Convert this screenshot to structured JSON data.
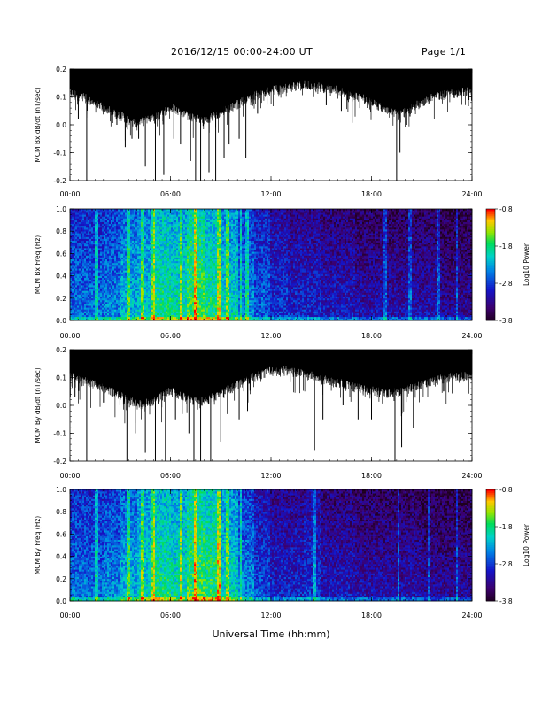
{
  "header": {
    "title": "2016/12/15  00:00-24:00 UT",
    "page": "Page 1/1"
  },
  "footer": {
    "xlabel": "Universal Time (hh:mm)"
  },
  "colors": {
    "trace": "#000000",
    "background": "#ffffff"
  },
  "chart_data": [
    {
      "type": "line",
      "ylabel": "MCM Bx dB/dt (nT/sec)",
      "xlabel": "",
      "x_tick_labels": [
        "00:00",
        "06:00",
        "12:00",
        "18:00",
        "24:00"
      ],
      "xlim": [
        0,
        24
      ],
      "ylim": [
        -0.2,
        0.2
      ],
      "y_tick_labels": [
        "0.2",
        "0.1",
        "0.0",
        "-0.1",
        "-0.2"
      ],
      "y_ticks": [
        0.2,
        0.1,
        0.0,
        -0.1,
        -0.2
      ],
      "envelope_x": [
        0,
        1,
        2,
        3,
        4,
        5,
        6,
        7,
        8,
        9,
        10,
        11,
        12,
        13,
        14,
        15,
        16,
        17,
        18,
        19,
        20,
        21,
        22,
        23,
        24
      ],
      "envelope_upper": [
        0.2,
        0.2,
        0.2,
        0.2,
        0.2,
        0.2,
        0.2,
        0.2,
        0.2,
        0.2,
        0.2,
        0.2,
        0.2,
        0.2,
        0.2,
        0.2,
        0.2,
        0.2,
        0.2,
        0.2,
        0.2,
        0.2,
        0.2,
        0.2,
        0.2
      ],
      "envelope_lower": [
        0.13,
        0.11,
        0.08,
        0.05,
        0.02,
        0.04,
        0.08,
        0.05,
        0.03,
        0.06,
        0.09,
        0.12,
        0.14,
        0.15,
        0.16,
        0.15,
        0.14,
        0.12,
        0.1,
        0.06,
        0.06,
        0.1,
        0.12,
        0.13,
        0.14
      ],
      "spikes": [
        {
          "x": 0.5,
          "y": 0.02
        },
        {
          "x": 1.0,
          "y": -0.2
        },
        {
          "x": 2.8,
          "y": 0.0
        },
        {
          "x": 3.3,
          "y": -0.08
        },
        {
          "x": 3.7,
          "y": -0.05
        },
        {
          "x": 4.1,
          "y": -0.05
        },
        {
          "x": 4.5,
          "y": -0.15
        },
        {
          "x": 5.1,
          "y": -0.2
        },
        {
          "x": 5.6,
          "y": -0.18
        },
        {
          "x": 6.2,
          "y": -0.05
        },
        {
          "x": 6.6,
          "y": -0.07
        },
        {
          "x": 7.2,
          "y": -0.13
        },
        {
          "x": 7.5,
          "y": -0.2
        },
        {
          "x": 7.8,
          "y": -0.2
        },
        {
          "x": 8.3,
          "y": -0.17
        },
        {
          "x": 8.7,
          "y": -0.2
        },
        {
          "x": 9.2,
          "y": -0.12
        },
        {
          "x": 9.5,
          "y": -0.07
        },
        {
          "x": 10.1,
          "y": -0.05
        },
        {
          "x": 10.5,
          "y": -0.12
        },
        {
          "x": 11.2,
          "y": 0.04
        },
        {
          "x": 15.3,
          "y": 0.07
        },
        {
          "x": 16.2,
          "y": 0.05
        },
        {
          "x": 17.3,
          "y": 0.06
        },
        {
          "x": 19.5,
          "y": -0.2
        },
        {
          "x": 19.7,
          "y": -0.1
        },
        {
          "x": 20.1,
          "y": 0.0
        },
        {
          "x": 20.3,
          "y": 0.03
        }
      ]
    },
    {
      "type": "heatmap",
      "ylabel": "MCM Bx Freq (Hz)",
      "x_tick_labels": [
        "00:00",
        "06:00",
        "12:00",
        "18:00",
        "24:00"
      ],
      "xlim": [
        0,
        24
      ],
      "ylim": [
        0.0,
        1.0
      ],
      "y_tick_labels": [
        "1.0",
        "0.8",
        "0.6",
        "0.4",
        "0.2",
        "0.0"
      ],
      "colorbar": {
        "label": "Log10 Power",
        "tick_labels": [
          "-0.8",
          "-1.8",
          "-2.8",
          "-3.8"
        ],
        "ticks": [
          -0.8,
          -1.8,
          -2.8,
          -3.8
        ],
        "range": [
          -3.8,
          -0.8
        ],
        "colormap": "rainbow"
      },
      "log_power_hourly_mean": [
        -2.7,
        -2.7,
        -2.6,
        -2.4,
        -2.3,
        -2.0,
        -2.1,
        -1.8,
        -2.0,
        -2.2,
        -2.6,
        -2.8,
        -3.0,
        -3.1,
        -3.1,
        -3.2,
        -3.2,
        -3.3,
        -3.3,
        -3.3,
        -3.3,
        -3.3,
        -3.4,
        -3.4
      ],
      "bright_streaks_hours": [
        1.6,
        3.5,
        4.3,
        5.0,
        6.6,
        7.5,
        8.9,
        9.4,
        10.2,
        10.6,
        18.8,
        20.3,
        22.0,
        23.1
      ]
    },
    {
      "type": "line",
      "ylabel": "MCM By dB/dt (nT/sec)",
      "xlabel": "",
      "x_tick_labels": [
        "00:00",
        "06:00",
        "12:00",
        "18:00",
        "24:00"
      ],
      "xlim": [
        0,
        24
      ],
      "ylim": [
        -0.2,
        0.2
      ],
      "y_tick_labels": [
        "0.2",
        "0.1",
        "0.0",
        "-0.1",
        "-0.2"
      ],
      "y_ticks": [
        0.2,
        0.1,
        0.0,
        -0.1,
        -0.2
      ],
      "envelope_x": [
        0,
        1,
        2,
        3,
        4,
        5,
        6,
        7,
        8,
        9,
        10,
        11,
        12,
        13,
        14,
        15,
        16,
        17,
        18,
        19,
        20,
        21,
        22,
        23,
        24
      ],
      "envelope_upper": [
        0.2,
        0.2,
        0.2,
        0.2,
        0.2,
        0.2,
        0.2,
        0.2,
        0.2,
        0.2,
        0.2,
        0.2,
        0.2,
        0.2,
        0.2,
        0.2,
        0.2,
        0.2,
        0.2,
        0.2,
        0.2,
        0.2,
        0.2,
        0.2,
        0.2
      ],
      "envelope_lower": [
        0.12,
        0.1,
        0.08,
        0.05,
        0.02,
        0.03,
        0.07,
        0.04,
        0.03,
        0.06,
        0.09,
        0.12,
        0.14,
        0.14,
        0.13,
        0.11,
        0.1,
        0.08,
        0.07,
        0.06,
        0.07,
        0.09,
        0.11,
        0.12,
        0.12
      ],
      "spikes": [
        {
          "x": 0.3,
          "y": 0.03
        },
        {
          "x": 1.0,
          "y": -0.2
        },
        {
          "x": 2.0,
          "y": 0.01
        },
        {
          "x": 3.4,
          "y": -0.2
        },
        {
          "x": 3.9,
          "y": -0.1
        },
        {
          "x": 4.5,
          "y": -0.17
        },
        {
          "x": 5.1,
          "y": -0.2
        },
        {
          "x": 5.7,
          "y": -0.2
        },
        {
          "x": 6.3,
          "y": -0.05
        },
        {
          "x": 7.1,
          "y": -0.1
        },
        {
          "x": 7.4,
          "y": -0.2
        },
        {
          "x": 7.8,
          "y": -0.2
        },
        {
          "x": 8.4,
          "y": -0.2
        },
        {
          "x": 9.0,
          "y": -0.13
        },
        {
          "x": 10.1,
          "y": -0.05
        },
        {
          "x": 10.6,
          "y": -0.02
        },
        {
          "x": 14.6,
          "y": -0.16
        },
        {
          "x": 15.1,
          "y": -0.05
        },
        {
          "x": 16.3,
          "y": 0.0
        },
        {
          "x": 17.2,
          "y": -0.05
        },
        {
          "x": 18.0,
          "y": -0.05
        },
        {
          "x": 19.4,
          "y": -0.2
        },
        {
          "x": 19.8,
          "y": -0.15
        },
        {
          "x": 20.5,
          "y": -0.08
        },
        {
          "x": 22.3,
          "y": 0.05
        }
      ]
    },
    {
      "type": "heatmap",
      "ylabel": "MCM By Freq (Hz)",
      "x_tick_labels": [
        "00:00",
        "06:00",
        "12:00",
        "18:00",
        "24:00"
      ],
      "xlim": [
        0,
        24
      ],
      "ylim": [
        0.0,
        1.0
      ],
      "y_tick_labels": [
        "1.0",
        "0.8",
        "0.6",
        "0.4",
        "0.2",
        "0.0"
      ],
      "colorbar": {
        "label": "Log10 Power",
        "tick_labels": [
          "-0.8",
          "-1.8",
          "-2.8",
          "-3.8"
        ],
        "ticks": [
          -0.8,
          -1.8,
          -2.8,
          -3.8
        ],
        "range": [
          -3.8,
          -0.8
        ],
        "colormap": "rainbow"
      },
      "log_power_hourly_mean": [
        -2.7,
        -2.7,
        -2.6,
        -2.4,
        -2.2,
        -2.0,
        -2.1,
        -1.8,
        -1.9,
        -2.2,
        -2.6,
        -2.9,
        -3.1,
        -3.1,
        -3.0,
        -3.2,
        -3.2,
        -3.3,
        -3.3,
        -3.3,
        -3.3,
        -3.4,
        -3.4,
        -3.4
      ],
      "bright_streaks_hours": [
        1.6,
        3.5,
        4.3,
        5.0,
        6.6,
        7.5,
        8.9,
        9.4,
        10.2,
        14.6,
        19.6,
        21.4,
        23.1
      ]
    }
  ]
}
